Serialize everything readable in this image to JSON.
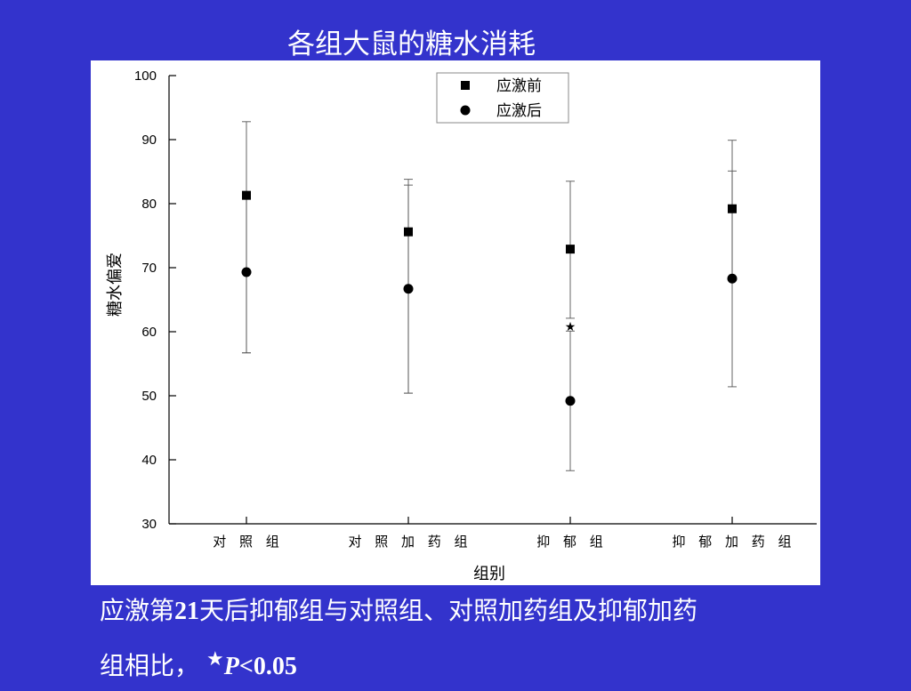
{
  "slide": {
    "title": "各组大鼠的糖水消耗",
    "background_color": "#3333cc",
    "caption_line1_pre": "应激第",
    "caption_line1_num": "21",
    "caption_line1_post": "天后抑郁组与对照组、对照加药组及抑郁加药",
    "caption_line2_pre": "组相比，",
    "caption_star": "★",
    "caption_p": "P",
    "caption_value": "<0.05"
  },
  "chart_data": {
    "type": "scatter",
    "title": "",
    "xlabel": "组别",
    "ylabel": "糖水偏爱",
    "ylim": [
      30,
      100
    ],
    "yticks": [
      30,
      40,
      50,
      60,
      70,
      80,
      90,
      100
    ],
    "categories": [
      "对照组",
      "对照加药组",
      "抑郁组",
      "抑郁加药组"
    ],
    "category_labels": [
      "对 照 组",
      "对 照 加 药 组",
      "抑 郁 组",
      "抑 郁 加 药 组"
    ],
    "series": [
      {
        "name": "应激前",
        "marker": "square",
        "values": [
          81.3,
          75.6,
          72.9,
          79.2
        ],
        "error_upper": [
          92.8,
          83.8,
          83.5,
          89.9
        ],
        "error_lower": [
          56.7,
          50.4,
          62.1,
          68.5
        ]
      },
      {
        "name": "应激后",
        "marker": "circle",
        "values": [
          69.3,
          66.7,
          49.2,
          68.3
        ],
        "error_upper": [
          81.3,
          82.9,
          60.1,
          85.1
        ],
        "error_lower": [
          56.7,
          50.4,
          38.3,
          51.4
        ]
      }
    ],
    "annotations": [
      {
        "category": "抑郁组",
        "y": 60.8,
        "text": "★"
      }
    ],
    "legend_position": "top-center",
    "grid": false
  }
}
